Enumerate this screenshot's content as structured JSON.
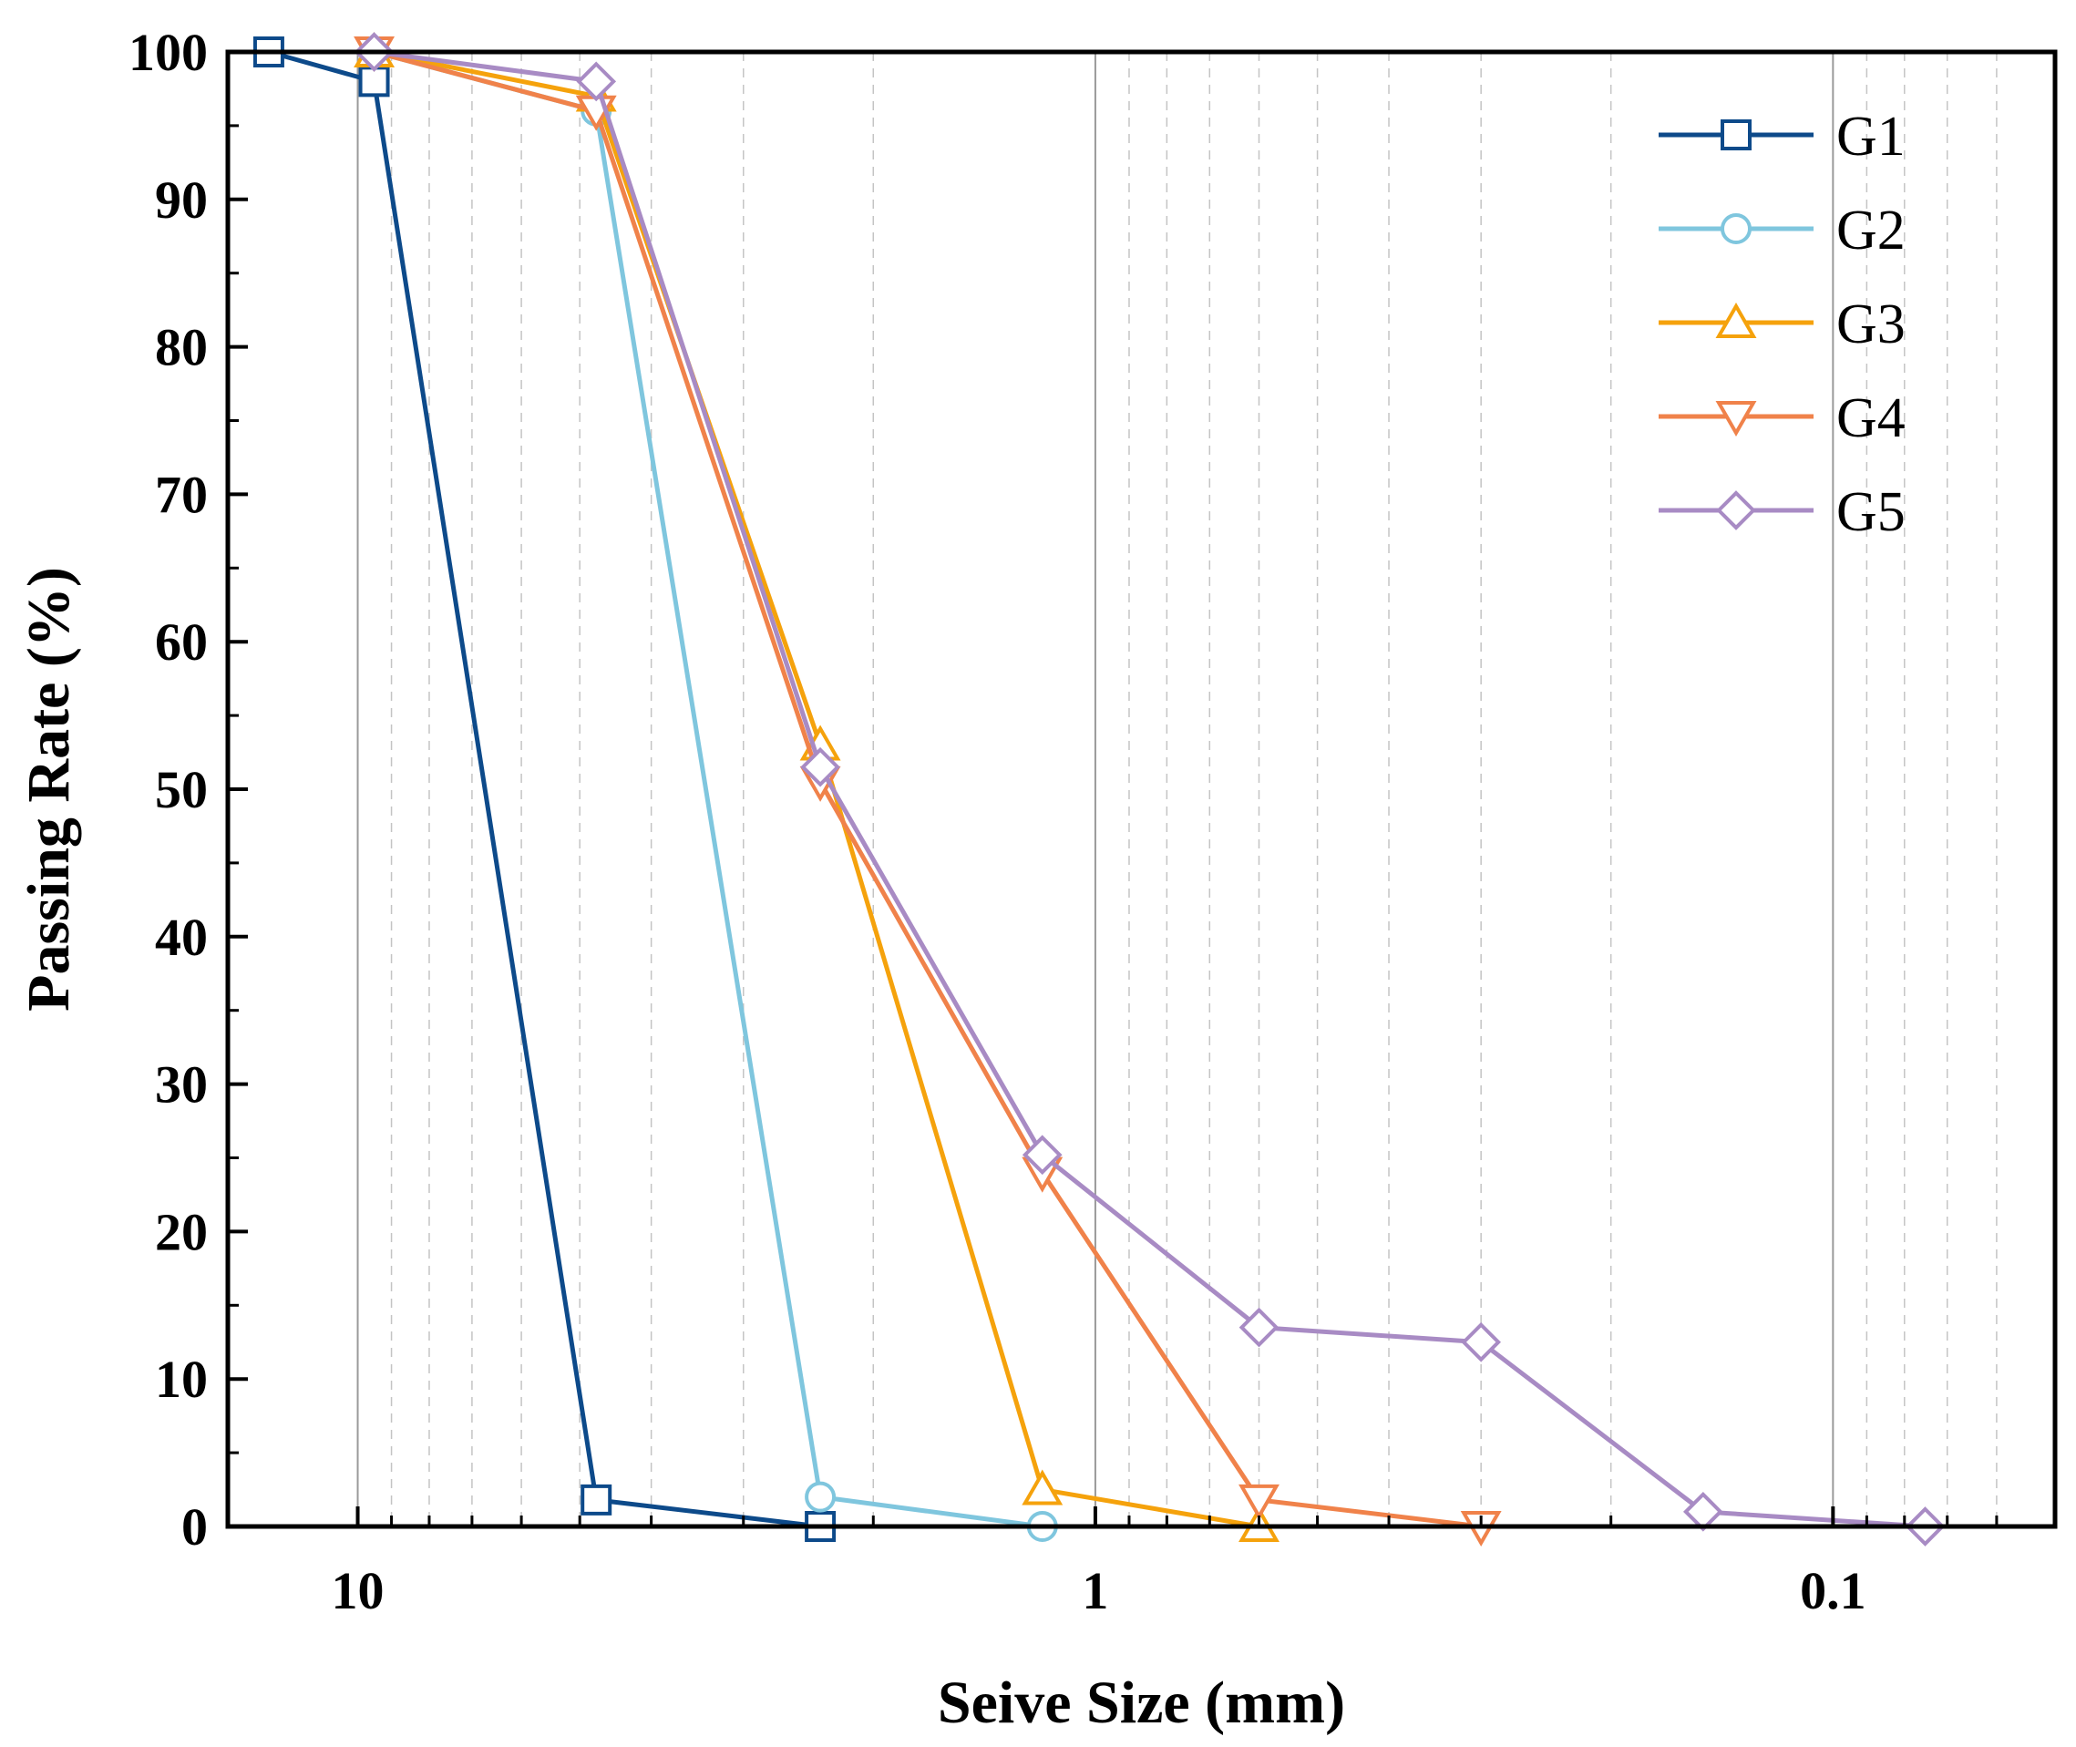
{
  "chart_data": {
    "type": "line",
    "title": "",
    "xlabel": "Seive Size (mm)",
    "ylabel": "Passing Rate  (%)",
    "x_scale": "log",
    "x_reversed": true,
    "xlim": [
      15,
      0.05
    ],
    "ylim": [
      0,
      100
    ],
    "x_ticks": [
      {
        "value": 10,
        "label": "10"
      },
      {
        "value": 1,
        "label": "1"
      },
      {
        "value": 0.1,
        "label": "0.1"
      }
    ],
    "y_ticks": [
      {
        "value": 0,
        "label": "0"
      },
      {
        "value": 10,
        "label": "10"
      },
      {
        "value": 20,
        "label": "20"
      },
      {
        "value": 30,
        "label": "30"
      },
      {
        "value": 40,
        "label": "40"
      },
      {
        "value": 50,
        "label": "50"
      },
      {
        "value": 60,
        "label": "60"
      },
      {
        "value": 70,
        "label": "70"
      },
      {
        "value": 80,
        "label": "80"
      },
      {
        "value": 90,
        "label": "90"
      },
      {
        "value": 100,
        "label": "100"
      }
    ],
    "grid": true,
    "legend_position": "top-right",
    "series": [
      {
        "name": "G1",
        "color": "#0d4a8a",
        "marker": "square",
        "x": [
          13.2,
          9.5,
          4.75,
          2.36
        ],
        "y": [
          100,
          98,
          1.8,
          0
        ]
      },
      {
        "name": "G2",
        "color": "#7fc6de",
        "marker": "circle",
        "x": [
          9.5,
          4.75,
          2.36,
          1.18
        ],
        "y": [
          100,
          96,
          2,
          0
        ]
      },
      {
        "name": "G3",
        "color": "#f5a20c",
        "marker": "triangle-up",
        "x": [
          9.5,
          4.75,
          2.36,
          1.18,
          0.6
        ],
        "y": [
          100,
          97,
          53,
          2.5,
          0
        ]
      },
      {
        "name": "G4",
        "color": "#f0824a",
        "marker": "triangle-down",
        "x": [
          9.5,
          4.75,
          2.36,
          1.18,
          0.6,
          0.3
        ],
        "y": [
          100,
          96,
          50.5,
          24,
          1.8,
          0
        ]
      },
      {
        "name": "G5",
        "color": "#a88bc4",
        "marker": "diamond",
        "x": [
          9.5,
          4.75,
          2.36,
          1.18,
          0.6,
          0.3,
          0.15,
          0.075
        ],
        "y": [
          100,
          98,
          51.5,
          25.2,
          13.5,
          12.5,
          1,
          0
        ]
      }
    ]
  }
}
